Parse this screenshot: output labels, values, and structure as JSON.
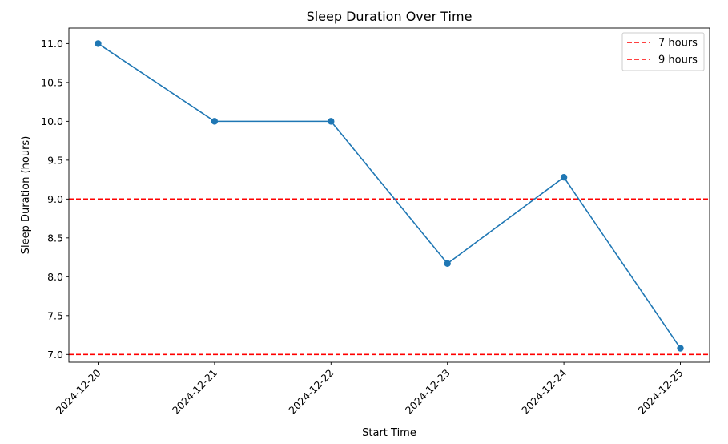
{
  "chart_data": {
    "type": "line",
    "title": "Sleep Duration Over Time",
    "xlabel": "Start Time",
    "ylabel": "Sleep Duration (hours)",
    "x": [
      "2024-12-20",
      "2024-12-21",
      "2024-12-22",
      "2024-12-23",
      "2024-12-24",
      "2024-12-25"
    ],
    "series": [
      {
        "values": [
          11.0,
          10.0,
          10.0,
          8.17,
          9.28,
          7.08
        ],
        "color": "#1f77b4",
        "marker": "circle"
      }
    ],
    "reference_lines": [
      {
        "name": "7 hours",
        "y": 7.0,
        "color": "#ff0000",
        "style": "dashed"
      },
      {
        "name": "9 hours",
        "y": 9.0,
        "color": "#ff0000",
        "style": "dashed"
      }
    ],
    "ylim": [
      6.9,
      11.2
    ],
    "yticks": [
      "7.0",
      "7.5",
      "8.0",
      "8.5",
      "9.0",
      "9.5",
      "10.0",
      "10.5",
      "11.0"
    ],
    "grid": false,
    "legend_position": "top-right"
  }
}
